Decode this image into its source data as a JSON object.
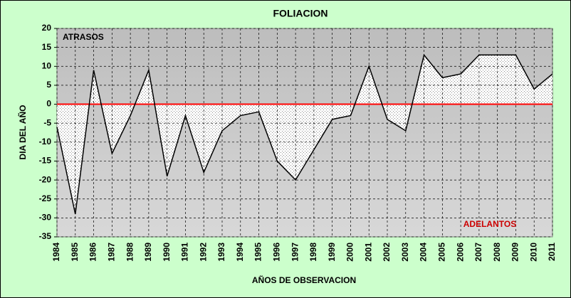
{
  "chart_data": {
    "type": "area",
    "title": "FOLIACION",
    "x_label": "AÑOS DE OBSERVACION",
    "y_label": "DIA DEL AÑO",
    "categories": [
      "1984",
      "1985",
      "1986",
      "1987",
      "1988",
      "1989",
      "1990",
      "1991",
      "1992",
      "1993",
      "1994",
      "1995",
      "1996",
      "1997",
      "1998",
      "1999",
      "2000",
      "2001",
      "2002",
      "2003",
      "2004",
      "2005",
      "2006",
      "2007",
      "2008",
      "2009",
      "2010",
      "2011"
    ],
    "values": [
      -6,
      -29,
      9,
      -13,
      -3,
      9,
      -19,
      -3,
      -18,
      -7,
      -3,
      -2,
      -15,
      -20,
      -12,
      -4,
      -3,
      10,
      -4,
      -7,
      13,
      7,
      8,
      13,
      13,
      13,
      4,
      8
    ],
    "color": "#000000",
    "ylim": [
      -35,
      20
    ],
    "yticks": [
      -35,
      -30,
      -25,
      -20,
      -15,
      -10,
      -5,
      0,
      5,
      10,
      15,
      20
    ],
    "grid": true,
    "baseline": 0,
    "baseline_color": "#ff0000",
    "annotations": [
      {
        "text": "ATRASOS",
        "color": "#000000"
      },
      {
        "text": "ADELANTOS",
        "color": "#cc0000"
      }
    ]
  }
}
